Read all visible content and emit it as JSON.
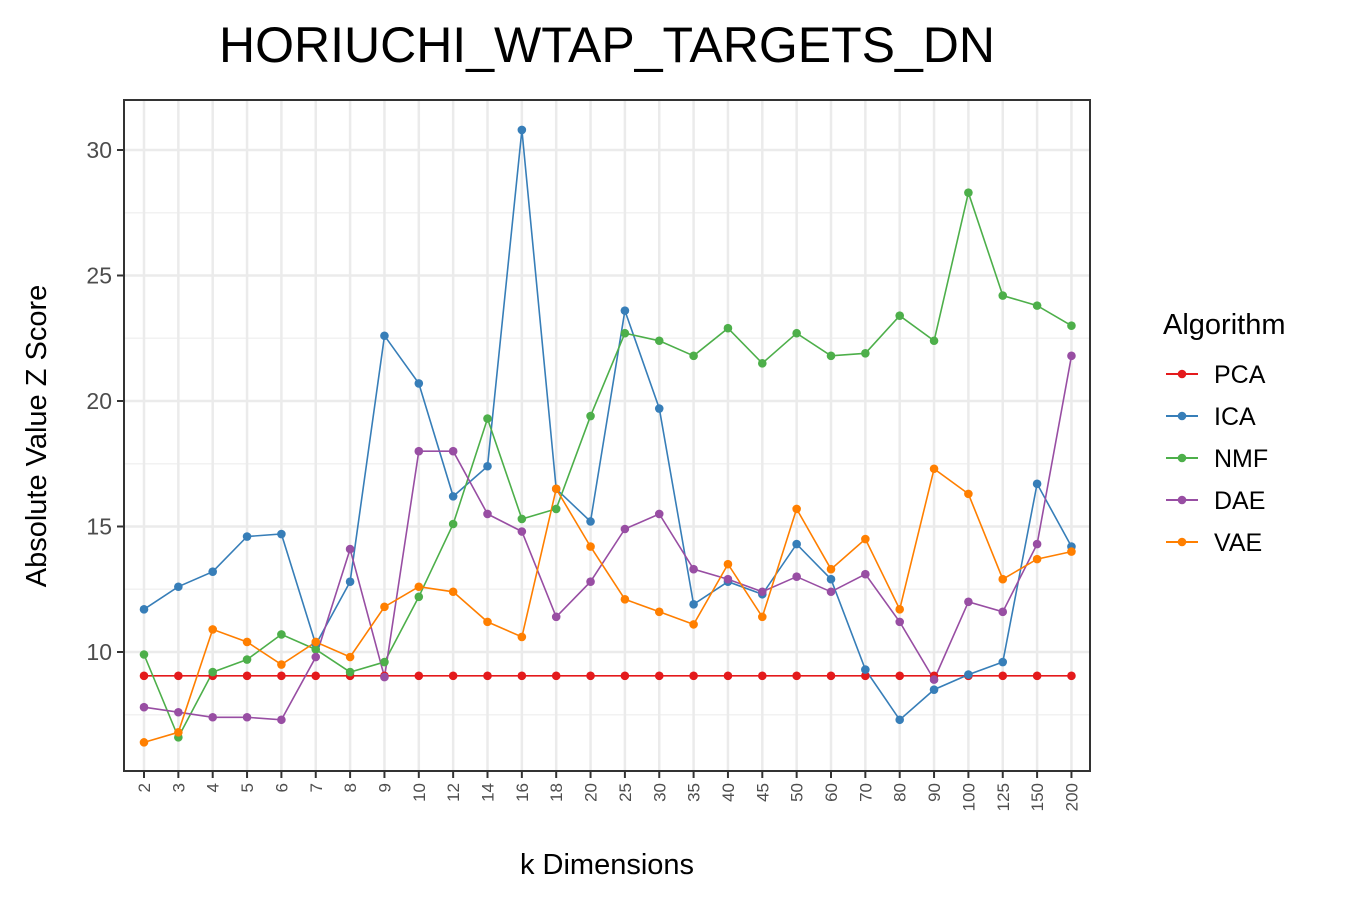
{
  "chart_data": {
    "type": "line",
    "title": "HORIUCHI_WTAP_TARGETS_DN",
    "xlabel": "k Dimensions",
    "ylabel": "Absolute Value Z Score",
    "categories": [
      "2",
      "3",
      "4",
      "5",
      "6",
      "7",
      "8",
      "9",
      "10",
      "12",
      "14",
      "16",
      "18",
      "20",
      "25",
      "30",
      "35",
      "40",
      "45",
      "50",
      "60",
      "70",
      "80",
      "90",
      "100",
      "125",
      "150",
      "200"
    ],
    "ylim": [
      5.5,
      32
    ],
    "yticks": [
      10,
      15,
      20,
      25,
      30
    ],
    "grid": true,
    "legend_title": "Algorithm",
    "legend_position": "right",
    "series": [
      {
        "name": "PCA",
        "color": "#e41a1c",
        "values": [
          9.05,
          9.05,
          9.05,
          9.05,
          9.05,
          9.05,
          9.05,
          9.05,
          9.05,
          9.05,
          9.05,
          9.05,
          9.05,
          9.05,
          9.05,
          9.05,
          9.05,
          9.05,
          9.05,
          9.05,
          9.05,
          9.05,
          9.05,
          9.05,
          9.05,
          9.05,
          9.05,
          9.05
        ]
      },
      {
        "name": "ICA",
        "color": "#377eb8",
        "values": [
          11.7,
          12.6,
          13.2,
          14.6,
          14.7,
          10.3,
          12.8,
          22.6,
          20.7,
          16.2,
          17.4,
          30.8,
          16.5,
          15.2,
          23.6,
          19.7,
          11.9,
          12.8,
          12.3,
          14.3,
          12.9,
          9.3,
          7.3,
          8.5,
          9.1,
          9.6,
          16.7,
          14.2
        ]
      },
      {
        "name": "NMF",
        "color": "#4daf4a",
        "values": [
          9.9,
          6.6,
          9.2,
          9.7,
          10.7,
          10.1,
          9.2,
          9.6,
          12.2,
          15.1,
          19.3,
          15.3,
          15.7,
          19.4,
          22.7,
          22.4,
          21.8,
          22.9,
          21.5,
          22.7,
          21.8,
          21.9,
          23.4,
          22.4,
          28.3,
          24.2,
          23.8,
          23.0
        ]
      },
      {
        "name": "DAE",
        "color": "#984ea3",
        "values": [
          7.8,
          7.6,
          7.4,
          7.4,
          7.3,
          9.8,
          14.1,
          9.0,
          18.0,
          18.0,
          15.5,
          14.8,
          11.4,
          12.8,
          14.9,
          15.5,
          13.3,
          12.9,
          12.4,
          13.0,
          12.4,
          13.1,
          11.2,
          8.9,
          12.0,
          11.6,
          14.3,
          21.8
        ]
      },
      {
        "name": "VAE",
        "color": "#ff7f00",
        "values": [
          6.4,
          6.8,
          10.9,
          10.4,
          9.5,
          10.4,
          9.8,
          11.8,
          12.6,
          12.4,
          11.2,
          10.6,
          16.5,
          14.2,
          12.1,
          11.6,
          11.1,
          13.5,
          11.4,
          15.7,
          13.3,
          14.5,
          11.7,
          17.3,
          16.3,
          12.9,
          13.7,
          14.0
        ]
      }
    ]
  }
}
